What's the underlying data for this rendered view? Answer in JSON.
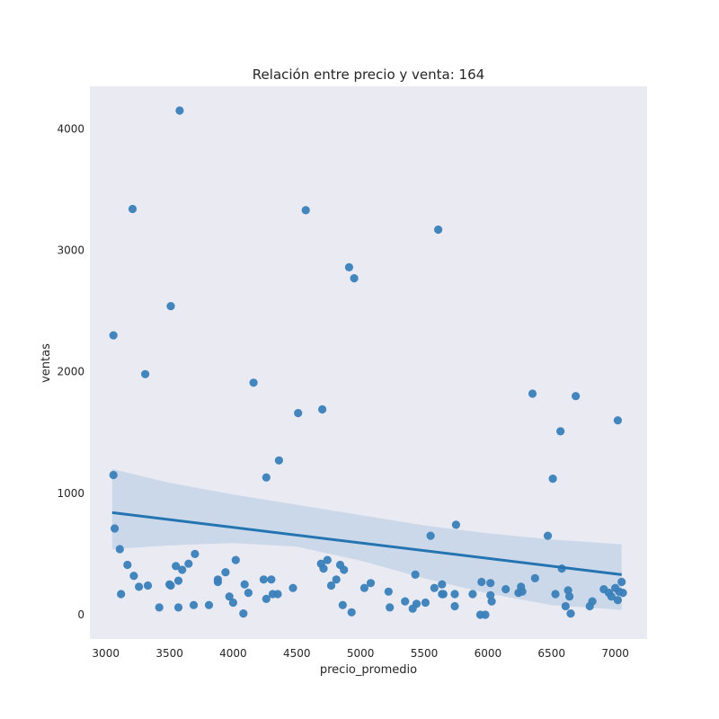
{
  "chart_data": {
    "type": "scatter",
    "title": "Relación entre precio y venta: 164",
    "xlabel": "precio_promedio",
    "ylabel": "ventas",
    "xlim": [
      2875,
      7250
    ],
    "ylim": [
      -200,
      4350
    ],
    "x_ticks": [
      3000,
      3500,
      4000,
      4500,
      5000,
      5500,
      6000,
      6500,
      7000
    ],
    "y_ticks": [
      0,
      1000,
      2000,
      3000,
      4000
    ],
    "grid": false,
    "colors": {
      "point": "#3a80b9",
      "line": "#2474b2",
      "band": "#a7c3de",
      "background": "#eaeaf2"
    },
    "regression": {
      "x_range": [
        3050,
        7050
      ],
      "y_start": 840,
      "y_end": 330,
      "ci_upper": [
        [
          3050,
          1200
        ],
        [
          3500,
          1085
        ],
        [
          4000,
          990
        ],
        [
          4500,
          905
        ],
        [
          5000,
          820
        ],
        [
          5500,
          735
        ],
        [
          6000,
          670
        ],
        [
          6500,
          620
        ],
        [
          7050,
          580
        ]
      ],
      "ci_lower": [
        [
          3050,
          540
        ],
        [
          3500,
          570
        ],
        [
          4000,
          590
        ],
        [
          4500,
          560
        ],
        [
          5000,
          445
        ],
        [
          5500,
          300
        ],
        [
          6000,
          175
        ],
        [
          6500,
          80
        ],
        [
          7050,
          40
        ]
      ]
    },
    "points": [
      [
        3060,
        2300
      ],
      [
        3060,
        1150
      ],
      [
        3070,
        710
      ],
      [
        3110,
        540
      ],
      [
        3120,
        170
      ],
      [
        3170,
        410
      ],
      [
        3210,
        3340
      ],
      [
        3220,
        320
      ],
      [
        3260,
        230
      ],
      [
        3310,
        1980
      ],
      [
        3330,
        240
      ],
      [
        3420,
        60
      ],
      [
        3500,
        250
      ],
      [
        3510,
        2540
      ],
      [
        3510,
        240
      ],
      [
        3550,
        400
      ],
      [
        3570,
        280
      ],
      [
        3570,
        60
      ],
      [
        3580,
        4150
      ],
      [
        3600,
        370
      ],
      [
        3650,
        420
      ],
      [
        3690,
        80
      ],
      [
        3700,
        500
      ],
      [
        3810,
        80
      ],
      [
        3880,
        290
      ],
      [
        3880,
        270
      ],
      [
        3940,
        350
      ],
      [
        3970,
        150
      ],
      [
        4000,
        100
      ],
      [
        4020,
        450
      ],
      [
        4080,
        10
      ],
      [
        4090,
        250
      ],
      [
        4120,
        180
      ],
      [
        4160,
        1910
      ],
      [
        4240,
        290
      ],
      [
        4260,
        1130
      ],
      [
        4260,
        130
      ],
      [
        4300,
        290
      ],
      [
        4310,
        170
      ],
      [
        4350,
        170
      ],
      [
        4360,
        1270
      ],
      [
        4470,
        220
      ],
      [
        4510,
        1660
      ],
      [
        4570,
        3330
      ],
      [
        4690,
        420
      ],
      [
        4700,
        1690
      ],
      [
        4710,
        380
      ],
      [
        4740,
        450
      ],
      [
        4770,
        240
      ],
      [
        4810,
        290
      ],
      [
        4840,
        410
      ],
      [
        4860,
        80
      ],
      [
        4870,
        370
      ],
      [
        4910,
        2860
      ],
      [
        4930,
        20
      ],
      [
        4950,
        2770
      ],
      [
        5030,
        220
      ],
      [
        5080,
        260
      ],
      [
        5220,
        190
      ],
      [
        5230,
        60
      ],
      [
        5350,
        110
      ],
      [
        5410,
        50
      ],
      [
        5430,
        330
      ],
      [
        5440,
        90
      ],
      [
        5510,
        100
      ],
      [
        5550,
        650
      ],
      [
        5580,
        220
      ],
      [
        5610,
        3170
      ],
      [
        5640,
        170
      ],
      [
        5640,
        250
      ],
      [
        5650,
        170
      ],
      [
        5740,
        70
      ],
      [
        5740,
        170
      ],
      [
        5750,
        740
      ],
      [
        5880,
        170
      ],
      [
        5940,
        0
      ],
      [
        5950,
        270
      ],
      [
        5980,
        0
      ],
      [
        6020,
        260
      ],
      [
        6020,
        160
      ],
      [
        6030,
        110
      ],
      [
        6140,
        210
      ],
      [
        6240,
        180
      ],
      [
        6260,
        230
      ],
      [
        6270,
        190
      ],
      [
        6350,
        1820
      ],
      [
        6370,
        300
      ],
      [
        6470,
        650
      ],
      [
        6510,
        1120
      ],
      [
        6530,
        170
      ],
      [
        6570,
        1510
      ],
      [
        6580,
        380
      ],
      [
        6610,
        70
      ],
      [
        6630,
        200
      ],
      [
        6640,
        150
      ],
      [
        6650,
        10
      ],
      [
        6690,
        1800
      ],
      [
        6800,
        70
      ],
      [
        6820,
        110
      ],
      [
        6910,
        210
      ],
      [
        6950,
        180
      ],
      [
        6970,
        150
      ],
      [
        7000,
        220
      ],
      [
        7020,
        1600
      ],
      [
        7020,
        120
      ],
      [
        7030,
        190
      ],
      [
        7050,
        270
      ],
      [
        7060,
        180
      ]
    ]
  }
}
